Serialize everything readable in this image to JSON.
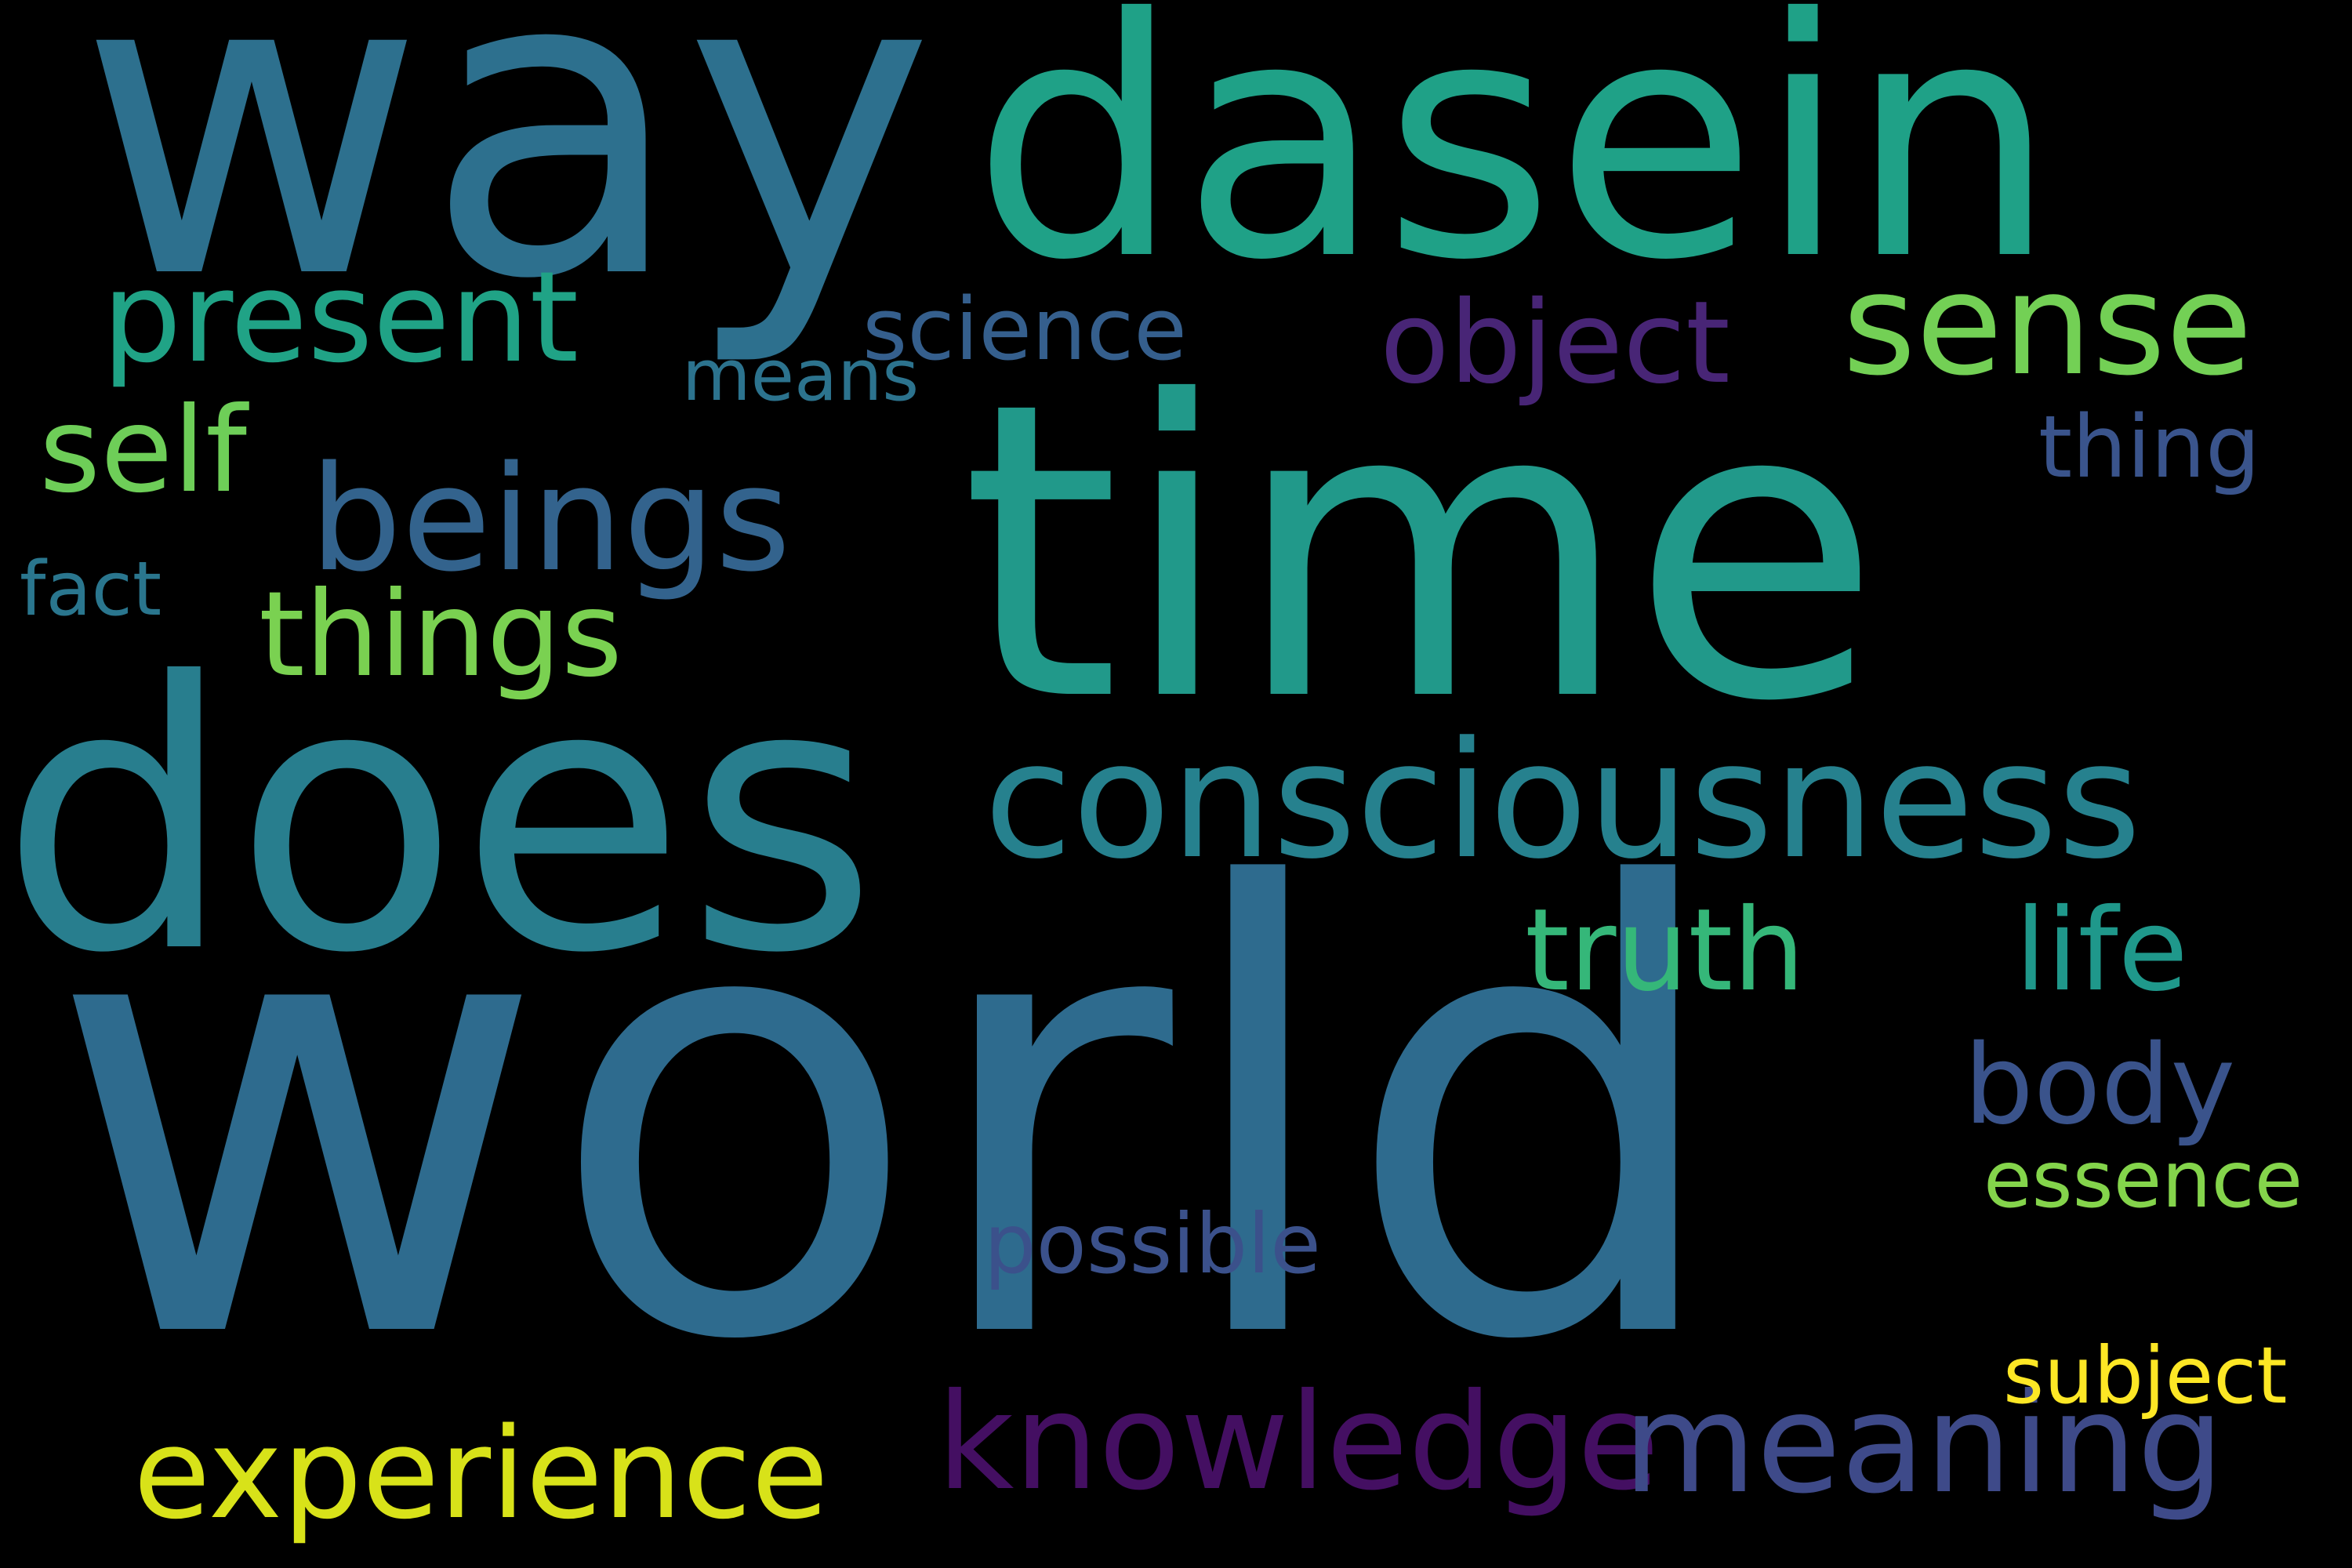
{
  "words": [
    {
      "id": "world",
      "text": "world",
      "color": "#2e6b8e"
    },
    {
      "id": "time",
      "text": "time",
      "color": "#21998a"
    },
    {
      "id": "does",
      "text": "does",
      "color": "#287e8e"
    },
    {
      "id": "way",
      "text": "way",
      "color": "#2d708e"
    },
    {
      "id": "dasein",
      "text": "dasein",
      "color": "#1fa187"
    },
    {
      "id": "consciousness",
      "text": "consciousness",
      "color": "#26818e"
    },
    {
      "id": "sense",
      "text": "sense",
      "color": "#73d055"
    },
    {
      "id": "present",
      "text": "present",
      "color": "#20a386"
    },
    {
      "id": "beings",
      "text": "beings",
      "color": "#33638d"
    },
    {
      "id": "object",
      "text": "object",
      "color": "#482576"
    },
    {
      "id": "knowledge",
      "text": "knowledge",
      "color": "#440f62"
    },
    {
      "id": "meaning",
      "text": "meaning",
      "color": "#3e4a89"
    },
    {
      "id": "experience",
      "text": "experience",
      "color": "#d8e219"
    },
    {
      "id": "things",
      "text": "things",
      "color": "#7ad151"
    },
    {
      "id": "self",
      "text": "self",
      "color": "#6ece58"
    },
    {
      "id": "truth",
      "text": "truth",
      "color": "#35b779"
    },
    {
      "id": "life",
      "text": "life",
      "color": "#1f988b"
    },
    {
      "id": "body",
      "text": "body",
      "color": "#3a538b"
    },
    {
      "id": "science",
      "text": "science",
      "color": "#355f8d"
    },
    {
      "id": "thing",
      "text": "thing",
      "color": "#3a548c"
    },
    {
      "id": "possible",
      "text": "possible",
      "color": "#3b518b"
    },
    {
      "id": "essence",
      "text": "essence",
      "color": "#84d44b"
    },
    {
      "id": "subject",
      "text": "subject",
      "color": "#fde725"
    },
    {
      "id": "fact",
      "text": "fact",
      "color": "#2a768e"
    },
    {
      "id": "means",
      "text": "means",
      "color": "#2c738e"
    }
  ]
}
